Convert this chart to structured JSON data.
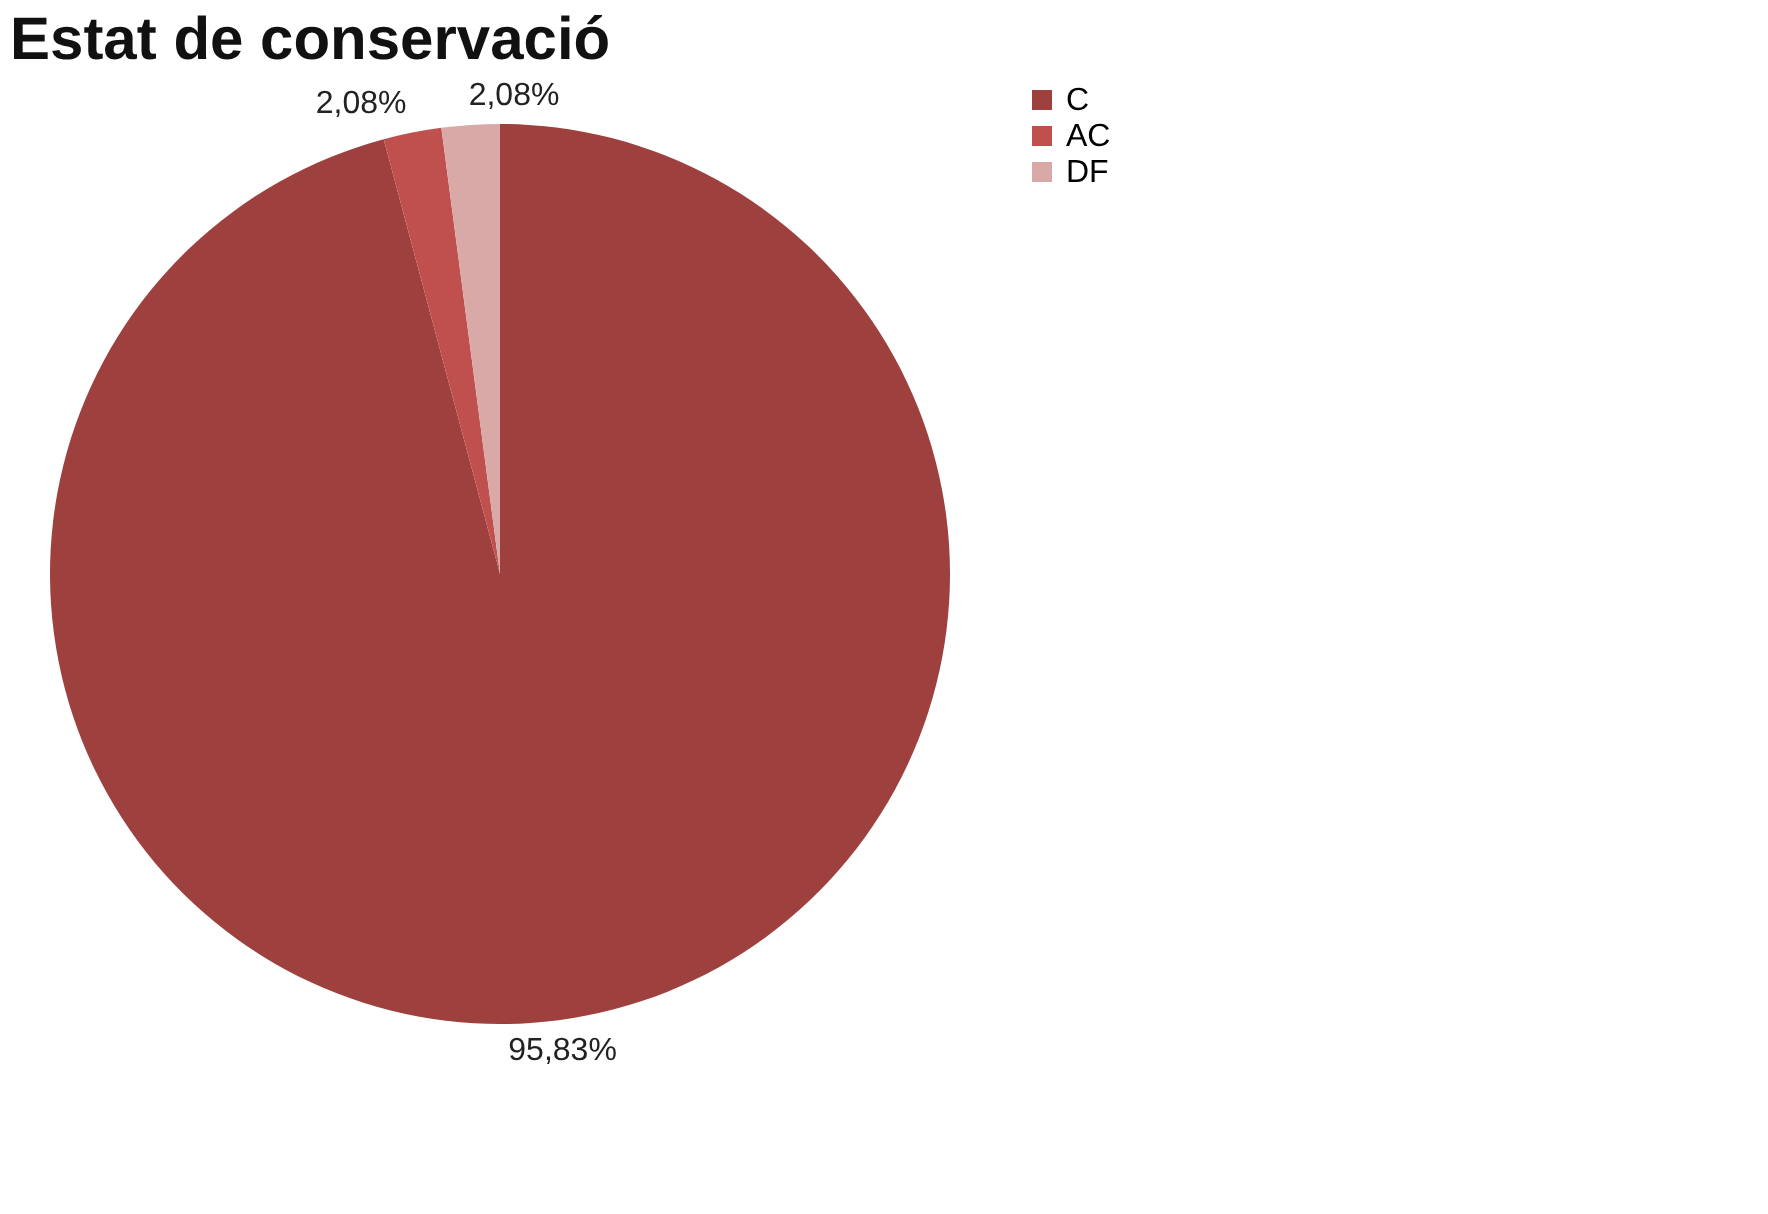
{
  "chart_data": {
    "type": "pie",
    "title": "Estat de conservació",
    "categories": [
      "C",
      "AC",
      "DF"
    ],
    "values": [
      95.83,
      2.08,
      2.08
    ],
    "colors": [
      "#9e413e",
      "#c0504d",
      "#d9a9a8"
    ],
    "value_labels": [
      "95,83%",
      "2,08%",
      "2,08%"
    ],
    "legend": "right"
  }
}
